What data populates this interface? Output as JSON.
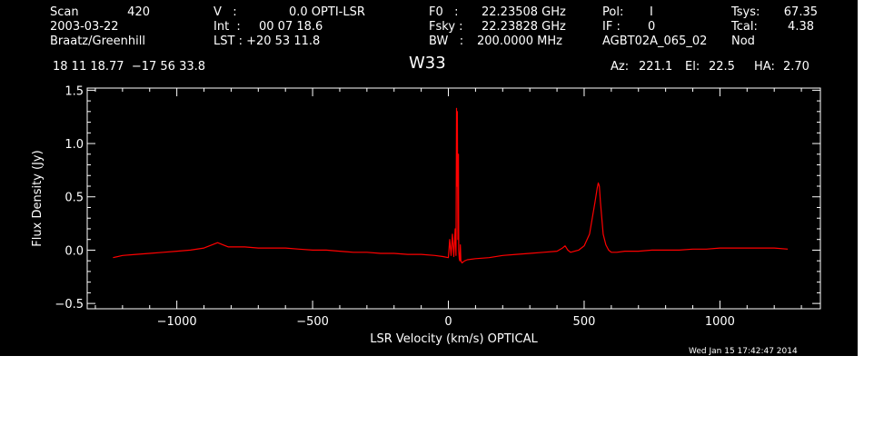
{
  "header": {
    "scan_label": "Scan",
    "scan_value": "420",
    "date": "2003-03-22",
    "observer": "Braatz/Greenhill",
    "v_label": "V   :",
    "v_value": "0.0 OPTI-LSR",
    "int_label": "Int  :",
    "int_value": "00 07 18.6",
    "lst_label": "LST : +20 53 11.8",
    "f0_label": "F0   :",
    "f0_value": "22.23508 GHz",
    "fsky_label": "Fsky :",
    "fsky_value": "22.23828 GHz",
    "bw_label": "BW   :",
    "bw_value": "200.0000 MHz",
    "pol_label": "Pol:",
    "pol_value": "I",
    "if_label": "IF :",
    "if_value": "0",
    "project": "AGBT02A_065_02",
    "tsys_label": "Tsys:",
    "tsys_value": "67.35",
    "tcal_label": "Tcal:",
    "tcal_value": "4.38",
    "mode": "Nod",
    "coords": "18 11 18.77  −17 56 33.8",
    "source": "W33",
    "az_label": "Az:",
    "az_value": "221.1",
    "el_label": "El:",
    "el_value": "22.5",
    "ha_label": "HA:",
    "ha_value": "2.70"
  },
  "timestamp": "Wed Jan 15 17:42:47 2014",
  "colors": {
    "background": "#000000",
    "axes": "#ffffff",
    "trace": "#ff0000"
  },
  "chart_data": {
    "type": "line",
    "title": "W33",
    "xlabel": "LSR Velocity (km/s) OPTICAL",
    "ylabel": "Flux Density (Jy)",
    "xlim": [
      -1330,
      1370
    ],
    "ylim": [
      -0.55,
      1.52
    ],
    "xticks": [
      -1000,
      -500,
      0,
      500,
      1000
    ],
    "xtick_labels": [
      "−1000",
      "−500",
      "0",
      "500",
      "1000"
    ],
    "yticks": [
      -0.5,
      0.0,
      0.5,
      1.0,
      1.5
    ],
    "ytick_labels": [
      "−0.5",
      "0.0",
      "0.5",
      "1.0",
      "1.5"
    ],
    "series": [
      {
        "x": [
          -1235,
          -1200,
          -1150,
          -1100,
          -1050,
          -1000,
          -950,
          -900,
          -870,
          -850,
          -830,
          -810,
          -780,
          -750,
          -700,
          -650,
          -600,
          -550,
          -500,
          -450,
          -400,
          -350,
          -300,
          -250,
          -200,
          -150,
          -100,
          -50,
          -20,
          0,
          5,
          10,
          15,
          20,
          25,
          28,
          30,
          31,
          33,
          35,
          37,
          38,
          40,
          42,
          44,
          46,
          50,
          55,
          60,
          70,
          100,
          150,
          200,
          250,
          300,
          350,
          400,
          420,
          430,
          440,
          450,
          480,
          500,
          520,
          530,
          540,
          548,
          552,
          556,
          560,
          565,
          570,
          580,
          590,
          600,
          620,
          650,
          700,
          750,
          800,
          850,
          900,
          950,
          1000,
          1050,
          1100,
          1150,
          1200,
          1250
        ],
        "y": [
          -0.07,
          -0.05,
          -0.04,
          -0.03,
          -0.02,
          -0.01,
          0.0,
          0.02,
          0.05,
          0.07,
          0.05,
          0.03,
          0.03,
          0.03,
          0.02,
          0.02,
          0.02,
          0.01,
          0.0,
          0.0,
          -0.01,
          -0.02,
          -0.02,
          -0.03,
          -0.03,
          -0.04,
          -0.04,
          -0.05,
          -0.06,
          -0.07,
          0.1,
          -0.05,
          0.15,
          -0.06,
          0.2,
          -0.05,
          1.33,
          0.6,
          1.3,
          0.1,
          0.9,
          0.0,
          -0.08,
          -0.1,
          0.05,
          -0.1,
          -0.12,
          -0.11,
          -0.1,
          -0.09,
          -0.08,
          -0.07,
          -0.05,
          -0.04,
          -0.03,
          -0.02,
          -0.01,
          0.02,
          0.04,
          0.0,
          -0.02,
          0.0,
          0.04,
          0.15,
          0.3,
          0.45,
          0.58,
          0.63,
          0.6,
          0.45,
          0.3,
          0.15,
          0.05,
          0.0,
          -0.02,
          -0.02,
          -0.01,
          -0.01,
          0.0,
          0.0,
          0.0,
          0.01,
          0.01,
          0.02,
          0.02,
          0.02,
          0.02,
          0.02,
          0.01
        ]
      }
    ]
  }
}
